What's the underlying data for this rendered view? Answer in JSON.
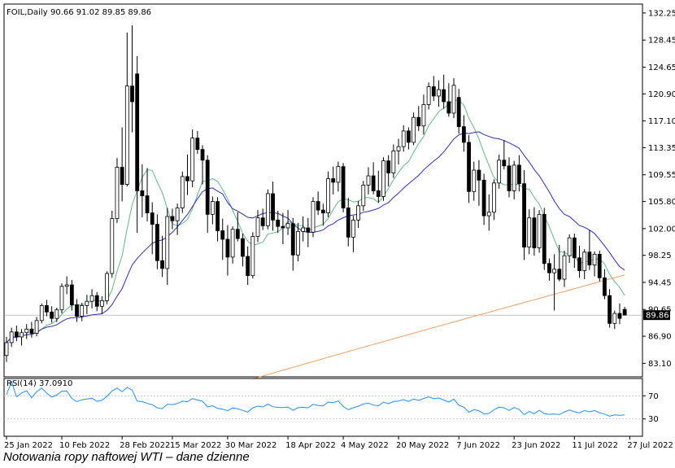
{
  "caption": "Notowania ropy naftowej WTI – dane dzienne",
  "chart_data": [
    {
      "type": "candlestick",
      "header_label": "FOIL,Daily",
      "ohlc_label": "90.66 91.02 89.85 89.86",
      "last_price_label": "89.86",
      "y_tick_labels": [
        "132.25",
        "128.45",
        "124.65",
        "120.90",
        "117.10",
        "113.35",
        "109.55",
        "105.80",
        "102.00",
        "98.25",
        "94.45",
        "90.65",
        "86.90",
        "83.10"
      ],
      "ylim": [
        81.2,
        133.5
      ],
      "x_tick_labels": [
        "25 Jan 2022",
        "10 Feb 2022",
        "28 Feb 2022",
        "15 Mar 2022",
        "30 Mar 2022",
        "18 Apr 2022",
        "4 May 2022",
        "20 May 2022",
        "7 Jun 2022",
        "23 Jun 2022",
        "11 Jul 2022",
        "27 Jul 2022"
      ],
      "x_tick_index": [
        0,
        11,
        23,
        33,
        44,
        56,
        67,
        78,
        90,
        101,
        113,
        124
      ],
      "candles": [
        [
          84.2,
          86.8,
          83.3,
          86.0
        ],
        [
          86.0,
          88.1,
          85.4,
          87.5
        ],
        [
          87.5,
          88.4,
          86.2,
          86.8
        ],
        [
          86.8,
          87.9,
          85.6,
          87.4
        ],
        [
          87.4,
          88.6,
          86.5,
          87.9
        ],
        [
          87.9,
          88.9,
          86.7,
          87.3
        ],
        [
          87.3,
          89.6,
          86.9,
          89.1
        ],
        [
          89.1,
          91.5,
          88.7,
          91.2
        ],
        [
          91.2,
          92.0,
          89.7,
          90.3
        ],
        [
          90.3,
          91.1,
          88.8,
          89.4
        ],
        [
          89.4,
          90.9,
          88.9,
          90.6
        ],
        [
          90.6,
          94.3,
          90.1,
          93.9
        ],
        [
          93.9,
          95.3,
          92.8,
          94.1
        ],
        [
          94.1,
          94.8,
          90.5,
          91.3
        ],
        [
          91.3,
          92.1,
          88.9,
          89.7
        ],
        [
          89.7,
          91.6,
          89.0,
          91.2
        ],
        [
          91.2,
          92.7,
          90.0,
          91.8
        ],
        [
          91.8,
          93.5,
          90.8,
          92.6
        ],
        [
          92.6,
          93.1,
          90.4,
          91.1
        ],
        [
          91.1,
          92.5,
          90.0,
          91.9
        ],
        [
          91.9,
          96.0,
          91.4,
          95.7
        ],
        [
          95.7,
          104.5,
          95.1,
          103.4
        ],
        [
          103.4,
          111.9,
          102.8,
          110.6
        ],
        [
          110.6,
          116.2,
          105.8,
          108.2
        ],
        [
          108.2,
          129.5,
          107.9,
          122.0
        ],
        [
          122.0,
          130.5,
          115.5,
          119.8
        ],
        [
          123.7,
          126.2,
          101.4,
          107.3
        ],
        [
          107.3,
          111.0,
          103.6,
          106.6
        ],
        [
          106.6,
          110.5,
          103.0,
          104.2
        ],
        [
          104.2,
          105.7,
          98.4,
          102.6
        ],
        [
          102.6,
          104.0,
          96.3,
          97.5
        ],
        [
          97.5,
          101.0,
          95.2,
          96.4
        ],
        [
          96.4,
          104.9,
          94.1,
          103.7
        ],
        [
          103.7,
          104.8,
          101.9,
          103.1
        ],
        [
          103.1,
          105.5,
          101.1,
          104.9
        ],
        [
          104.9,
          110.0,
          104.2,
          109.3
        ],
        [
          109.3,
          112.4,
          106.7,
          108.7
        ],
        [
          108.7,
          115.9,
          107.8,
          114.7
        ],
        [
          114.7,
          115.7,
          112.5,
          113.1
        ],
        [
          113.1,
          113.7,
          108.2,
          111.6
        ],
        [
          111.6,
          112.3,
          101.4,
          104.0
        ],
        [
          104.0,
          106.5,
          102.6,
          105.8
        ],
        [
          105.8,
          106.4,
          100.2,
          101.7
        ],
        [
          101.7,
          103.4,
          97.6,
          100.5
        ],
        [
          100.5,
          102.5,
          95.4,
          98.0
        ],
        [
          98.0,
          102.3,
          97.1,
          101.9
        ],
        [
          101.9,
          104.3,
          100.2,
          100.6
        ],
        [
          100.6,
          101.3,
          96.7,
          98.1
        ],
        [
          98.1,
          99.5,
          94.1,
          95.4
        ],
        [
          95.4,
          101.5,
          95.0,
          100.9
        ],
        [
          100.9,
          104.6,
          100.1,
          103.5
        ],
        [
          103.5,
          104.8,
          101.8,
          102.4
        ],
        [
          102.4,
          107.5,
          101.9,
          106.9
        ],
        [
          106.9,
          108.6,
          101.7,
          103.2
        ],
        [
          103.2,
          104.5,
          101.4,
          102.3
        ],
        [
          102.3,
          104.2,
          99.8,
          102.1
        ],
        [
          102.1,
          104.6,
          101.1,
          102.7
        ],
        [
          102.7,
          103.5,
          96.1,
          98.3
        ],
        [
          98.3,
          102.8,
          97.4,
          101.6
        ],
        [
          101.6,
          103.7,
          100.2,
          102.1
        ],
        [
          102.1,
          103.5,
          99.4,
          101.5
        ],
        [
          101.5,
          106.4,
          100.8,
          105.8
        ],
        [
          105.8,
          107.2,
          103.9,
          104.6
        ],
        [
          104.6,
          105.5,
          102.4,
          104.2
        ],
        [
          104.2,
          110.0,
          103.6,
          109.0
        ],
        [
          109.0,
          110.7,
          106.8,
          108.5
        ],
        [
          108.5,
          111.4,
          107.2,
          110.7
        ],
        [
          110.7,
          111.2,
          104.3,
          104.9
        ],
        [
          104.9,
          106.3,
          99.5,
          100.8
        ],
        [
          100.8,
          103.8,
          98.7,
          103.2
        ],
        [
          103.2,
          105.9,
          102.1,
          105.2
        ],
        [
          105.2,
          108.7,
          104.5,
          108.1
        ],
        [
          108.1,
          110.6,
          106.8,
          109.4
        ],
        [
          109.4,
          111.3,
          106.8,
          107.3
        ],
        [
          107.3,
          110.1,
          105.6,
          106.5
        ],
        [
          106.5,
          112.0,
          105.9,
          111.5
        ],
        [
          111.5,
          112.3,
          107.9,
          109.8
        ],
        [
          109.8,
          113.8,
          109.1,
          112.9
        ],
        [
          112.9,
          114.6,
          111.0,
          113.5
        ],
        [
          113.5,
          116.5,
          112.8,
          115.7
        ],
        [
          115.7,
          116.2,
          113.1,
          114.1
        ],
        [
          114.1,
          118.3,
          113.7,
          117.6
        ],
        [
          117.6,
          119.2,
          115.7,
          116.4
        ],
        [
          116.4,
          120.8,
          115.2,
          119.4
        ],
        [
          119.4,
          122.5,
          118.7,
          121.9
        ],
        [
          121.9,
          123.4,
          119.9,
          120.6
        ],
        [
          120.6,
          122.8,
          119.1,
          121.5
        ],
        [
          121.5,
          123.6,
          118.8,
          119.8
        ],
        [
          119.8,
          122.4,
          117.7,
          118.2
        ],
        [
          118.2,
          123.1,
          117.5,
          122.1
        ],
        [
          120.4,
          121.6,
          115.3,
          116.3
        ],
        [
          116.3,
          117.9,
          112.8,
          114.1
        ],
        [
          114.1,
          115.1,
          105.6,
          107.2
        ],
        [
          107.2,
          111.4,
          105.9,
          110.2
        ],
        [
          110.2,
          111.6,
          105.2,
          108.8
        ],
        [
          108.8,
          109.7,
          102.5,
          103.8
        ],
        [
          103.8,
          106.8,
          101.7,
          104.3
        ],
        [
          104.3,
          108.9,
          103.2,
          108.4
        ],
        [
          108.4,
          112.4,
          107.6,
          111.6
        ],
        [
          111.6,
          114.4,
          110.3,
          110.8
        ],
        [
          110.8,
          112.0,
          106.4,
          107.3
        ],
        [
          107.3,
          111.5,
          106.1,
          110.9
        ],
        [
          110.9,
          112.3,
          107.2,
          108.3
        ],
        [
          108.3,
          110.2,
          97.6,
          99.4
        ],
        [
          99.4,
          104.7,
          98.4,
          103.5
        ],
        [
          103.5,
          105.0,
          98.2,
          99.3
        ],
        [
          99.3,
          104.6,
          98.6,
          104.0
        ],
        [
          104.0,
          104.9,
          96.2,
          97.1
        ],
        [
          97.1,
          97.8,
          94.7,
          95.8
        ],
        [
          95.8,
          98.4,
          90.5,
          96.3
        ],
        [
          96.3,
          99.7,
          94.6,
          94.9
        ],
        [
          94.9,
          98.9,
          93.8,
          98.2
        ],
        [
          98.2,
          101.2,
          97.2,
          100.7
        ],
        [
          100.7,
          101.3,
          96.5,
          97.9
        ],
        [
          97.9,
          99.6,
          95.1,
          96.1
        ],
        [
          96.1,
          99.1,
          94.9,
          98.7
        ],
        [
          98.7,
          101.8,
          96.2,
          96.9
        ],
        [
          96.9,
          98.8,
          95.3,
          98.4
        ],
        [
          98.4,
          98.9,
          94.6,
          95.1
        ],
        [
          95.1,
          96.3,
          92.1,
          92.6
        ],
        [
          92.6,
          93.5,
          88.1,
          88.7
        ],
        [
          88.7,
          90.5,
          87.9,
          90.1
        ],
        [
          90.1,
          91.5,
          88.6,
          89.4
        ],
        [
          90.66,
          91.02,
          89.85,
          89.86
        ]
      ],
      "indicators": [
        {
          "color": "#5dbb85",
          "type": "sma",
          "period": 8
        },
        {
          "color": "#2e2bc0",
          "type": "sma",
          "period": 20
        },
        {
          "color": "#f0a060",
          "type": "sma",
          "period": 100
        }
      ],
      "rsi": {
        "label": "RSI(14) 37.0910",
        "period": 14,
        "tick_labels": [
          "70",
          "30"
        ],
        "tick_values": [
          70,
          30
        ],
        "ylim": [
          0,
          100
        ],
        "color": "#1e90ff"
      }
    }
  ]
}
